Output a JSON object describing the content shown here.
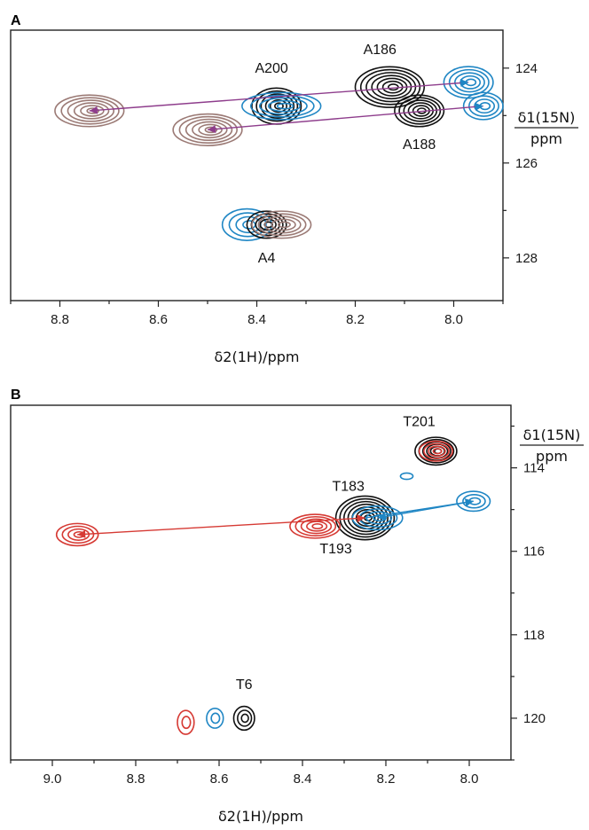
{
  "chart_data": [
    {
      "type": "scatter",
      "panel": "A",
      "xlabel": "δ2(1H)/ppm",
      "ylabel_num": "δ1(15N)",
      "ylabel_den": "ppm",
      "x_ticks": [
        "8.8",
        "8.6",
        "8.4",
        "8.2",
        "8.0"
      ],
      "y_ticks": [
        "124",
        "126",
        "128"
      ],
      "xlim": [
        8.9,
        7.9
      ],
      "ylim": [
        123.2,
        128.9
      ],
      "colors": {
        "black": "#111111",
        "blue": "#1f86c4",
        "brown": "#9b7a75",
        "arrow": "#8e3d8c"
      },
      "peaks": [
        {
          "label": "A200",
          "x": 8.36,
          "y": 124.8,
          "color": "#111111",
          "w": 0.05,
          "h": 0.4,
          "n": 6
        },
        {
          "label": "",
          "x": 8.35,
          "y": 124.8,
          "color": "#1f86c4",
          "w": 0.08,
          "h": 0.3,
          "n": 5
        },
        {
          "label": "A186",
          "x": 8.13,
          "y": 124.4,
          "color": "#111111",
          "w": 0.07,
          "h": 0.45,
          "n": 7
        },
        {
          "label": "A188",
          "x": 8.07,
          "y": 124.9,
          "color": "#111111",
          "w": 0.05,
          "h": 0.35,
          "n": 6
        },
        {
          "label": "",
          "x": 7.97,
          "y": 124.3,
          "color": "#1f86c4",
          "w": 0.05,
          "h": 0.35,
          "n": 5
        },
        {
          "label": "",
          "x": 7.94,
          "y": 124.8,
          "color": "#1f86c4",
          "w": 0.04,
          "h": 0.3,
          "n": 4
        },
        {
          "label": "",
          "x": 8.74,
          "y": 124.9,
          "color": "#9b7a75",
          "w": 0.07,
          "h": 0.35,
          "n": 6
        },
        {
          "label": "",
          "x": 8.5,
          "y": 125.3,
          "color": "#9b7a75",
          "w": 0.07,
          "h": 0.35,
          "n": 6
        },
        {
          "label": "",
          "x": 8.42,
          "y": 127.3,
          "color": "#1f86c4",
          "w": 0.05,
          "h": 0.35,
          "n": 4
        },
        {
          "label": "A4",
          "x": 8.38,
          "y": 127.3,
          "color": "#111111",
          "w": 0.04,
          "h": 0.3,
          "n": 5
        },
        {
          "label": "",
          "x": 8.35,
          "y": 127.3,
          "color": "#9b7a75",
          "w": 0.06,
          "h": 0.3,
          "n": 5
        }
      ],
      "arrows": [
        {
          "from": [
            7.97,
            124.3
          ],
          "to": [
            8.74,
            124.9
          ],
          "color": "#8e3d8c",
          "from_color": "#1f86c4"
        },
        {
          "from": [
            7.94,
            124.8
          ],
          "to": [
            8.5,
            125.3
          ],
          "color": "#8e3d8c",
          "from_color": "#1f86c4"
        }
      ],
      "labels": [
        {
          "text": "A200",
          "x": 8.37,
          "y": 124.1
        },
        {
          "text": "A186",
          "x": 8.15,
          "y": 123.7
        },
        {
          "text": "A188",
          "x": 8.07,
          "y": 125.7
        },
        {
          "text": "A4",
          "x": 8.38,
          "y": 128.1
        }
      ]
    },
    {
      "type": "scatter",
      "panel": "B",
      "xlabel": "δ2(1H)/ppm",
      "ylabel_num": "δ1(15N)",
      "ylabel_den": "ppm",
      "x_ticks": [
        "9.0",
        "8.8",
        "8.6",
        "8.4",
        "8.2",
        "8.0"
      ],
      "y_ticks": [
        "114",
        "116",
        "118",
        "120"
      ],
      "xlim": [
        9.1,
        7.9
      ],
      "ylim": [
        112.5,
        121
      ],
      "colors": {
        "black": "#111111",
        "blue": "#1f86c4",
        "red": "#d63a34"
      },
      "peaks": [
        {
          "label": "T201",
          "x": 8.08,
          "y": 113.6,
          "color": "#111111",
          "w": 0.05,
          "h": 0.35,
          "n": 6
        },
        {
          "label": "",
          "x": 8.08,
          "y": 113.6,
          "color": "#d63a34",
          "w": 0.04,
          "h": 0.25,
          "n": 4
        },
        {
          "label": "",
          "x": 8.15,
          "y": 114.2,
          "color": "#1f86c4",
          "w": 0.015,
          "h": 0.08,
          "n": 1
        },
        {
          "label": "T183",
          "x": 8.25,
          "y": 115.2,
          "color": "#111111",
          "w": 0.07,
          "h": 0.55,
          "n": 8
        },
        {
          "label": "",
          "x": 8.22,
          "y": 115.2,
          "color": "#1f86c4",
          "w": 0.06,
          "h": 0.3,
          "n": 4
        },
        {
          "label": "",
          "x": 8.37,
          "y": 115.4,
          "color": "#d63a34",
          "w": 0.06,
          "h": 0.3,
          "n": 5
        },
        {
          "label": "",
          "x": 7.99,
          "y": 114.8,
          "color": "#1f86c4",
          "w": 0.04,
          "h": 0.25,
          "n": 3
        },
        {
          "label": "",
          "x": 8.94,
          "y": 115.6,
          "color": "#d63a34",
          "w": 0.05,
          "h": 0.28,
          "n": 4
        },
        {
          "label": "T6",
          "x": 8.54,
          "y": 120,
          "color": "#111111",
          "w": 0.025,
          "h": 0.3,
          "n": 3
        },
        {
          "label": "",
          "x": 8.61,
          "y": 120,
          "color": "#1f86c4",
          "w": 0.02,
          "h": 0.25,
          "n": 2
        },
        {
          "label": "",
          "x": 8.68,
          "y": 120.1,
          "color": "#d63a34",
          "w": 0.02,
          "h": 0.3,
          "n": 2
        }
      ],
      "arrows": [
        {
          "from": [
            7.99,
            114.8
          ],
          "to": [
            8.25,
            115.2
          ],
          "color": "#1f86c4",
          "from_color": "#1f86c4",
          "no_head": true
        },
        {
          "from": [
            8.25,
            115.2
          ],
          "to": [
            8.94,
            115.6
          ],
          "color": "#d63a34",
          "from_color": "#d63a34"
        },
        {
          "from": [
            8.22,
            115.2
          ],
          "to": [
            7.99,
            114.8
          ],
          "color": "#1f86c4",
          "from_color": "#1f86c4"
        }
      ],
      "labels": [
        {
          "text": "T201",
          "x": 8.12,
          "y": 113.0
        },
        {
          "text": "T183",
          "x": 8.29,
          "y": 114.55
        },
        {
          "text": "T193",
          "x": 8.32,
          "y": 116.05
        },
        {
          "text": "T6",
          "x": 8.54,
          "y": 119.3
        }
      ]
    }
  ]
}
